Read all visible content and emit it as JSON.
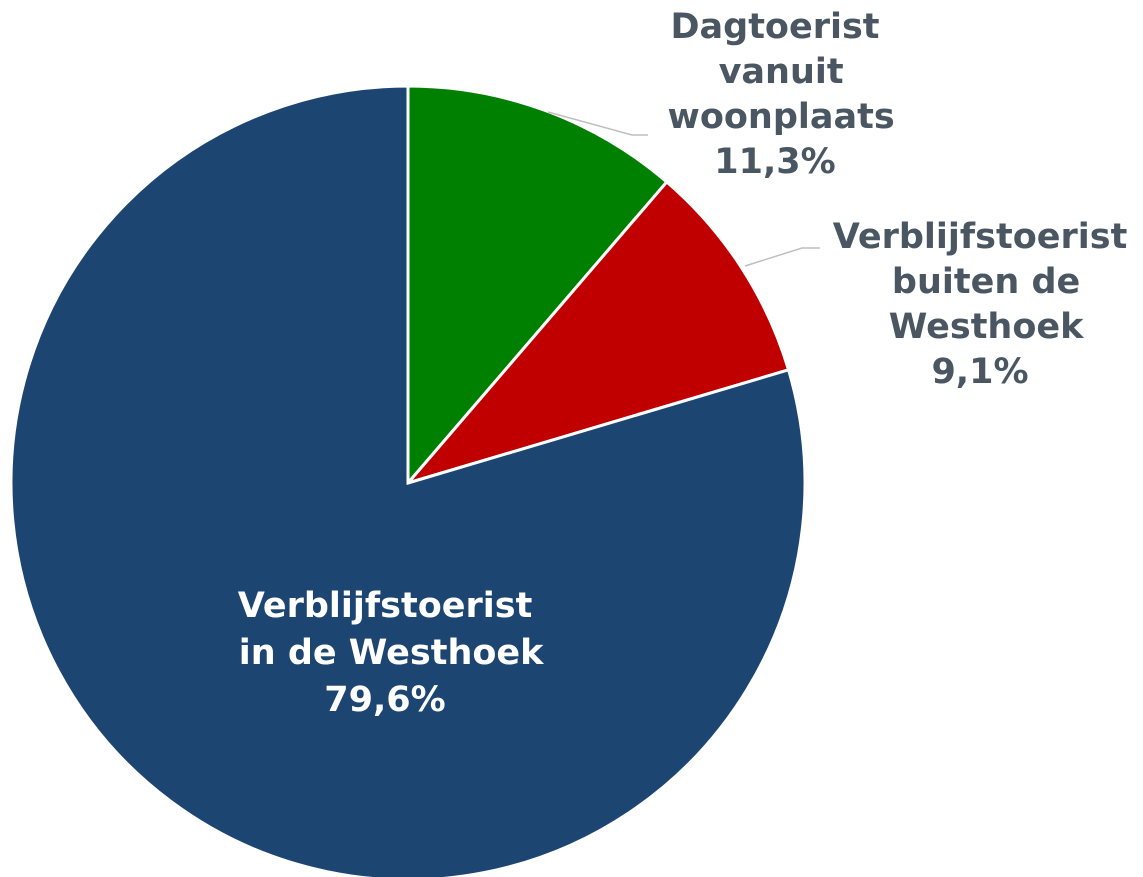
{
  "chart_data": {
    "type": "pie",
    "categories": [
      "Dagtoerist vanuit woonplaats",
      "Verblijfstoerist buiten de Westhoek",
      "Verblijfstoerist in de Westhoek"
    ],
    "values": [
      11.3,
      9.1,
      79.6
    ],
    "value_labels": [
      "11,3%",
      "9,1%",
      "79,6%"
    ],
    "colors": [
      "#008000",
      "#c00000",
      "#1c4572"
    ]
  }
}
